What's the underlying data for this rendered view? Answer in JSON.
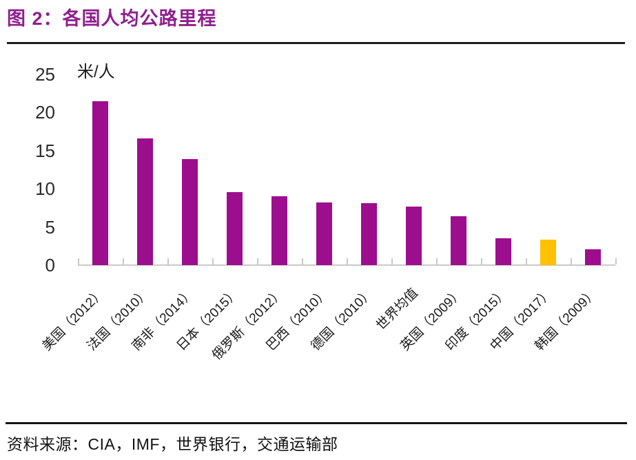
{
  "header": {
    "title": "图 2：各国人均公路里程"
  },
  "footer": {
    "source": "资料来源：CIA，IMF，世界银行，交通运输部"
  },
  "chart_data": {
    "type": "bar",
    "title": "各国人均公路里程",
    "unit_label": "米/人",
    "xlabel": "",
    "ylabel": "米/人",
    "ylim": [
      0,
      25
    ],
    "yticks": [
      0,
      5,
      10,
      15,
      20,
      25
    ],
    "grid": false,
    "legend_position": "none",
    "categories": [
      "美国（2012）",
      "法国（2010）",
      "南非（2014）",
      "日本（2015）",
      "俄罗斯（2012）",
      "巴西（2010）",
      "德国（2010）",
      "世界均值",
      "英国（2009）",
      "印度（2015）",
      "中国（2017）",
      "韩国（2009）"
    ],
    "values": [
      21.5,
      16.6,
      13.9,
      9.6,
      9.0,
      8.2,
      8.1,
      7.7,
      6.4,
      3.5,
      3.3,
      2.1
    ],
    "bar_color": "#9C0E8E",
    "highlight_color": "#FFC000",
    "highlight_index": 10
  }
}
